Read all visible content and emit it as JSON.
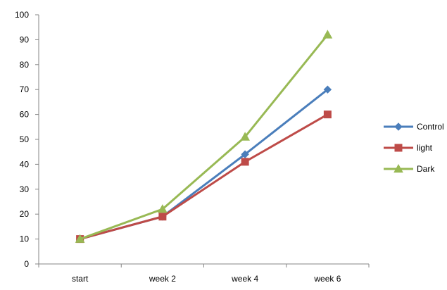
{
  "chart_data": {
    "type": "line",
    "title": "",
    "xlabel": "",
    "ylabel": "",
    "categories": [
      "start",
      "week 2",
      "week 4",
      "week 6"
    ],
    "ylim": [
      0,
      100
    ],
    "yticks": [
      0,
      10,
      20,
      30,
      40,
      50,
      60,
      70,
      80,
      90,
      100
    ],
    "grid": false,
    "legend_position": "right",
    "series": [
      {
        "name": "Control",
        "values": [
          10,
          19,
          44,
          70
        ],
        "color": "#4a7ebb",
        "marker": "diamond"
      },
      {
        "name": "light",
        "values": [
          10,
          19,
          41,
          60
        ],
        "color": "#be4b48",
        "marker": "square"
      },
      {
        "name": "Dark",
        "values": [
          10,
          22,
          51,
          92
        ],
        "color": "#98b954",
        "marker": "triangle"
      }
    ]
  }
}
